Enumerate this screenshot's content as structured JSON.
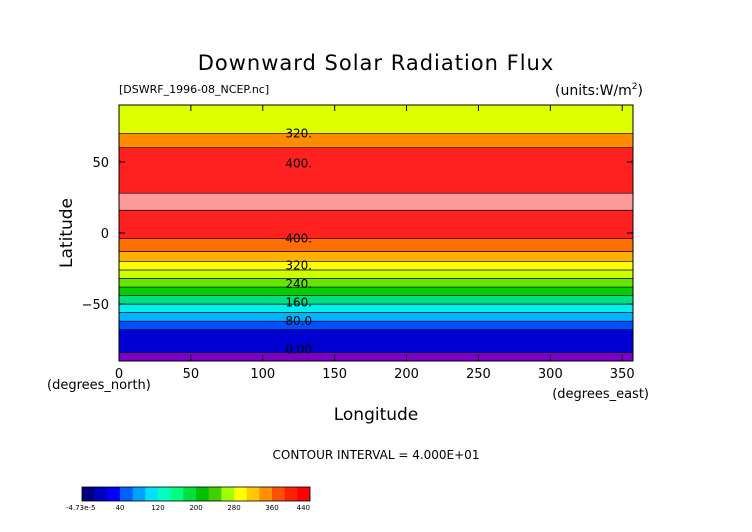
{
  "chart_data": {
    "type": "heatmap",
    "title": "Downward Solar Radiation Flux",
    "subtitle_left": "[DSWRF_1996-08_NCEP.nc]",
    "subtitle_right": "(units:W/m^2)",
    "xlabel": "Longitude",
    "ylabel": "Latitude",
    "x_unit_label": "(degrees_east)",
    "y_unit_label": "(degrees_north)",
    "xlim": [
      0,
      357.5
    ],
    "ylim": [
      -90,
      90
    ],
    "x_ticks": [
      0,
      50,
      100,
      150,
      200,
      250,
      300,
      350
    ],
    "y_ticks": [
      -50,
      0,
      50
    ],
    "bands": [
      {
        "lat_from": -90,
        "lat_to": -84,
        "color": "#7a00c8"
      },
      {
        "lat_from": -84,
        "lat_to": -68,
        "color": "#0000d0"
      },
      {
        "lat_from": -68,
        "lat_to": -62,
        "color": "#0050ff"
      },
      {
        "lat_from": -62,
        "lat_to": -56,
        "color": "#00b4ff"
      },
      {
        "lat_from": -56,
        "lat_to": -50,
        "color": "#00f0f0"
      },
      {
        "lat_from": -50,
        "lat_to": -44,
        "color": "#00e080"
      },
      {
        "lat_from": -44,
        "lat_to": -38,
        "color": "#00cc00"
      },
      {
        "lat_from": -38,
        "lat_to": -32,
        "color": "#66e600"
      },
      {
        "lat_from": -32,
        "lat_to": -26,
        "color": "#ccff00"
      },
      {
        "lat_from": -26,
        "lat_to": -20,
        "color": "#ffff00"
      },
      {
        "lat_from": -20,
        "lat_to": -13,
        "color": "#ffb000"
      },
      {
        "lat_from": -13,
        "lat_to": -4,
        "color": "#ff6e00"
      },
      {
        "lat_from": -4,
        "lat_to": 16,
        "color": "#ff2020"
      },
      {
        "lat_from": 16,
        "lat_to": 28,
        "color": "#ff9a9a"
      },
      {
        "lat_from": 28,
        "lat_to": 60,
        "color": "#ff2020"
      },
      {
        "lat_from": 60,
        "lat_to": 70,
        "color": "#ff8c00"
      },
      {
        "lat_from": 70,
        "lat_to": 90,
        "color": "#ddff00"
      }
    ],
    "contour_labels": [
      {
        "text": "320.",
        "lat": 70
      },
      {
        "text": "400.",
        "lat": 49
      },
      {
        "text": "400.",
        "lat": -4
      },
      {
        "text": "320.",
        "lat": -23
      },
      {
        "text": "240.",
        "lat": -36
      },
      {
        "text": "160.",
        "lat": -49
      },
      {
        "text": "80.0",
        "lat": -62
      },
      {
        "text": "0.00",
        "lat": -82
      }
    ],
    "contour_label_lon": 125,
    "contour_interval_text": "CONTOUR INTERVAL = 4.000E+01",
    "colorbar": {
      "labels": [
        "-4.73e-5",
        "40",
        "120",
        "200",
        "280",
        "360",
        "440"
      ],
      "segments": [
        "#000080",
        "#0000c0",
        "#0000ff",
        "#0060ff",
        "#00a0ff",
        "#00e0ff",
        "#00ffc0",
        "#00ff80",
        "#00e040",
        "#00c000",
        "#40d000",
        "#a0ff00",
        "#ffff00",
        "#ffc800",
        "#ff9000",
        "#ff5000",
        "#ff2000",
        "#ff0000"
      ]
    }
  }
}
